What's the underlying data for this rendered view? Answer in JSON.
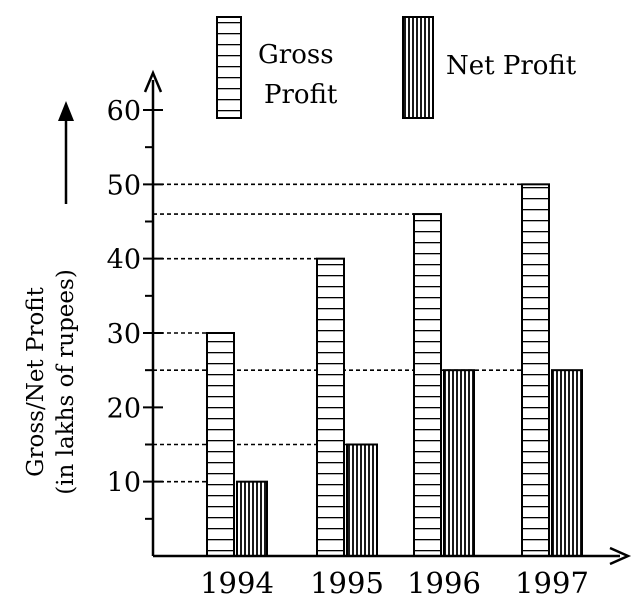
{
  "chart_data": {
    "type": "bar",
    "categories": [
      "1994",
      "1995",
      "1996",
      "1997"
    ],
    "series": [
      {
        "name": "Gross Profit",
        "values": [
          30,
          40,
          46,
          50
        ],
        "pattern": "horizontal-stripes"
      },
      {
        "name": "Net Profit",
        "values": [
          10,
          15,
          25,
          25
        ],
        "pattern": "vertical-stripes"
      }
    ],
    "ylabel_line1": "Gross/Net Profit",
    "ylabel_line2": "(in lakhs of rupees)",
    "yticks": [
      10,
      20,
      30,
      40,
      50,
      60
    ],
    "ylim": [
      0,
      60
    ],
    "legend": {
      "gross_line1": "Gross",
      "gross_line2": "Profit",
      "net": "Net Profit",
      "position": "top"
    },
    "reference_lines": "dashed",
    "colors": {
      "ink": "#000000",
      "background": "#ffffff"
    }
  }
}
